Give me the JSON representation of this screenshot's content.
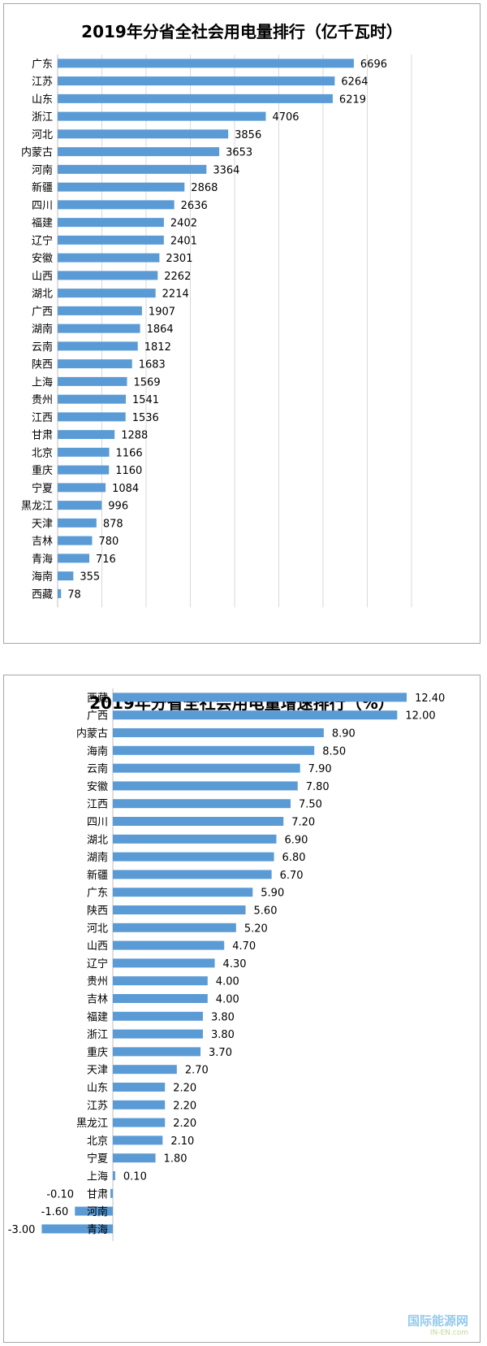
{
  "chart_data": [
    {
      "type": "bar",
      "orientation": "horizontal",
      "title": "2019年分省全社会用电量排行（亿千瓦时）",
      "categories": [
        "广东",
        "江苏",
        "山东",
        "浙江",
        "河北",
        "内蒙古",
        "河南",
        "新疆",
        "四川",
        "福建",
        "辽宁",
        "安徽",
        "山西",
        "湖北",
        "广西",
        "湖南",
        "云南",
        "陕西",
        "上海",
        "贵州",
        "江西",
        "甘肃",
        "北京",
        "重庆",
        "宁夏",
        "黑龙江",
        "天津",
        "吉林",
        "青海",
        "海南",
        "西藏"
      ],
      "values": [
        6696,
        6264,
        6219,
        4706,
        3856,
        3653,
        3364,
        2868,
        2636,
        2402,
        2401,
        2301,
        2262,
        2214,
        1907,
        1864,
        1812,
        1683,
        1569,
        1541,
        1536,
        1288,
        1166,
        1160,
        1084,
        996,
        878,
        780,
        716,
        355,
        78
      ],
      "data_labels": [
        "6696",
        "6264",
        "6219",
        "4706",
        "3856",
        "3653",
        "3364",
        "2868",
        "2636",
        "2402",
        "2401",
        "2301",
        "2262",
        "2214",
        "1907",
        "1864",
        "1812",
        "1683",
        "1569",
        "1541",
        "1536",
        "1288",
        "1166",
        "1160",
        "1084",
        "996",
        "878",
        "780",
        "716",
        "355",
        "78"
      ],
      "xlim": [
        0,
        8000
      ],
      "grid": true,
      "bar_color": "#5b9bd5"
    },
    {
      "type": "bar",
      "orientation": "horizontal",
      "title": "2019年分省全社会用电量增速排行（%）",
      "categories": [
        "西藏",
        "广西",
        "内蒙古",
        "海南",
        "云南",
        "安徽",
        "江西",
        "四川",
        "湖北",
        "湖南",
        "新疆",
        "广东",
        "陕西",
        "河北",
        "山西",
        "辽宁",
        "贵州",
        "吉林",
        "福建",
        "浙江",
        "重庆",
        "天津",
        "山东",
        "江苏",
        "黑龙江",
        "北京",
        "宁夏",
        "上海",
        "甘肃",
        "河南",
        "青海"
      ],
      "values": [
        12.4,
        12.0,
        8.9,
        8.5,
        7.9,
        7.8,
        7.5,
        7.2,
        6.9,
        6.8,
        6.7,
        5.9,
        5.6,
        5.2,
        4.7,
        4.3,
        4.0,
        4.0,
        3.8,
        3.8,
        3.7,
        2.7,
        2.2,
        2.2,
        2.2,
        2.1,
        1.8,
        0.1,
        -0.1,
        -1.6,
        -3.0
      ],
      "data_labels": [
        "12.40",
        "12.00",
        "8.90",
        "8.50",
        "7.90",
        "7.80",
        "7.50",
        "7.20",
        "6.90",
        "6.80",
        "6.70",
        "5.90",
        "5.60",
        "5.20",
        "4.70",
        "4.30",
        "4.00",
        "4.00",
        "3.80",
        "3.80",
        "3.70",
        "2.70",
        "2.20",
        "2.20",
        "2.20",
        "2.10",
        "1.80",
        "0.10",
        "-0.10",
        "-1.60",
        "-3.00"
      ],
      "grid": false,
      "bar_color": "#5b9bd5"
    }
  ],
  "watermark": {
    "line1": "IN-EN.com",
    "line2": "国际能源网"
  }
}
